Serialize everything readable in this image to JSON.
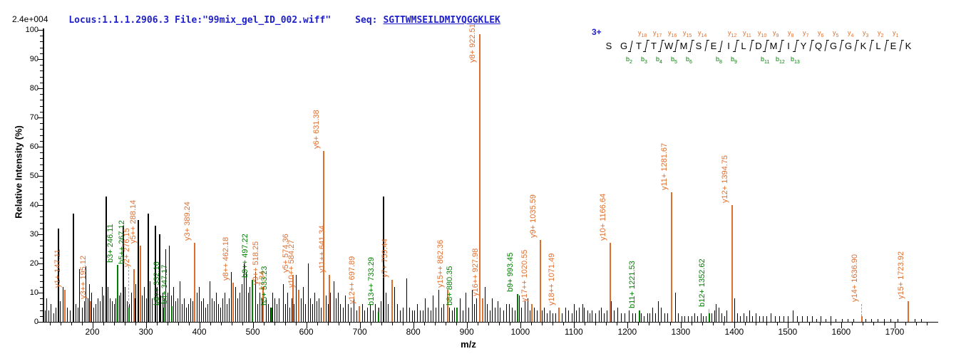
{
  "header": {
    "locus_file": "Locus:1.1.1.2906.3 File:\"99mix_gel_ID_002.wiff\"",
    "seq_label": "Seq:",
    "seq_value": "SGTTWMSEILDMIYQGGKLEK"
  },
  "intensity_scale_label": "2.4e+004",
  "colors": {
    "y_ion": "#e06f2e",
    "b_ion": "#008000",
    "peak_black": "#000000",
    "header_blue": "#2020cc",
    "leader_grey": "#a0a0a0"
  },
  "fragment_map": {
    "charge_label": "3+",
    "residues": [
      "S",
      "G",
      "T",
      "T",
      "W",
      "M",
      "S",
      "E",
      "I",
      "L",
      "D",
      "M",
      "I",
      "Y",
      "Q",
      "G",
      "G",
      "K",
      "L",
      "E",
      "K"
    ],
    "y_ions": {
      "3": "y18",
      "4": "y17",
      "5": "y16",
      "6": "y15",
      "7": "y14",
      "9": "y12",
      "10": "y11",
      "11": "y10",
      "12": "y9",
      "13": "y8",
      "14": "y7",
      "15": "y6",
      "16": "y5",
      "17": "y4",
      "18": "y3",
      "19": "y2",
      "20": "y1"
    },
    "b_ions": {
      "2": "b2",
      "3": "b3",
      "4": "b4",
      "5": "b5",
      "6": "b6",
      "8": "b8",
      "9": "b9",
      "11": "b11",
      "12": "b12",
      "13": "b13"
    }
  },
  "chart_data": {
    "type": "bar",
    "subtype": "ms2-spectrum",
    "xlabel": "m/z",
    "ylabel": "Relative  Intensity (%)",
    "xlim": [
      110,
      1780
    ],
    "ylim": [
      0,
      100
    ],
    "x_major_tick_labels": [
      200,
      300,
      400,
      500,
      600,
      700,
      800,
      900,
      1000,
      1100,
      1200,
      1300,
      1400,
      1500,
      1600,
      1700
    ],
    "x_minor_step": 20,
    "y_tick_labels": [
      0,
      10,
      20,
      30,
      40,
      50,
      60,
      70,
      80,
      90,
      100
    ],
    "y_minor_step": 2,
    "annotated_peaks": [
      {
        "label": "y1+ 147.11",
        "mz": 147.11,
        "intensity": 11,
        "type": "y"
      },
      {
        "label": "y3++ 195.12",
        "mz": 195.12,
        "intensity": 7,
        "type": "y"
      },
      {
        "label": "b3+ 246.11",
        "mz": 246.11,
        "intensity": 19.5,
        "type": "b"
      },
      {
        "label": "b5++ 267.12",
        "mz": 267.12,
        "intensity": 5,
        "label_at": 19,
        "leader": true,
        "type": "b"
      },
      {
        "label": "y2+ 276.15",
        "mz": 276.15,
        "intensity": 18,
        "type": "y"
      },
      {
        "label": "y5++ 288.14",
        "mz": 288.14,
        "intensity": 26,
        "type": "y"
      },
      {
        "label": "b6++ 332.16",
        "mz": 332.16,
        "intensity": 5,
        "type": "b"
      },
      {
        "label": "b4+ 347.17",
        "mz": 347.17,
        "intensity": 5.5,
        "type": "b"
      },
      {
        "label": "y3+ 389.24",
        "mz": 389.24,
        "intensity": 27,
        "type": "y"
      },
      {
        "label": "y8++ 462.18",
        "mz": 462.18,
        "intensity": 13.5,
        "type": "y"
      },
      {
        "label": "b9++ 497.22",
        "mz": 497.22,
        "intensity": 14.5,
        "type": "b"
      },
      {
        "label": "17.34",
        "mz": 517.34,
        "intensity": 10,
        "label_dx": 9,
        "type": "y"
      },
      {
        "label": "y9++ 518.25",
        "mz": 518.25,
        "intensity": 12,
        "type": "y"
      },
      {
        "label": "b5+ 533.23",
        "mz": 533.23,
        "intensity": 5,
        "type": "b"
      },
      {
        "label": "y5+ 574.36",
        "mz": 574.36,
        "intensity": 16,
        "type": "y"
      },
      {
        "label": "y10++ 584.27",
        "mz": 584.27,
        "intensity": 11,
        "type": "y"
      },
      {
        "label": "y6+ 631.38",
        "mz": 631.38,
        "intensity": 58.5,
        "type": "y"
      },
      {
        "label": "y11++ 641.34",
        "mz": 641.34,
        "intensity": 16,
        "type": "y"
      },
      {
        "label": "y12++ 697.89",
        "mz": 697.89,
        "intensity": 5.5,
        "type": "y"
      },
      {
        "label": "b13++ 733.29",
        "mz": 733.29,
        "intensity": 3.5,
        "label_at": 5,
        "leader": true,
        "type": "b"
      },
      {
        "label": "y7+ 759.44",
        "mz": 759.44,
        "intensity": 14.5,
        "type": "y"
      },
      {
        "label": "y15++ 862.36",
        "mz": 862.36,
        "intensity": 11,
        "type": "y"
      },
      {
        "label": "b8+ 880.35",
        "mz": 880.35,
        "intensity": 5,
        "type": "b"
      },
      {
        "label": "y8+ 922.51",
        "mz": 922.51,
        "intensity": 98.5,
        "label_at": 88,
        "type": "y"
      },
      {
        "label": "y16++ 927.98",
        "mz": 927.98,
        "intensity": 8,
        "type": "y"
      },
      {
        "label": "b9+ 993.45",
        "mz": 993.45,
        "intensity": 9.5,
        "type": "b"
      },
      {
        "label": "y17++ 1020.55",
        "mz": 1020.55,
        "intensity": 6,
        "type": "y"
      },
      {
        "label": "y9+ 1035.59",
        "mz": 1035.59,
        "intensity": 28,
        "type": "y"
      },
      {
        "label": "y18++ 1071.49",
        "mz": 1071.49,
        "intensity": 5,
        "type": "y"
      },
      {
        "label": "y10+ 1166.64",
        "mz": 1166.64,
        "intensity": 27,
        "type": "y"
      },
      {
        "label": "b11+ 1221.53",
        "mz": 1221.53,
        "intensity": 4,
        "type": "b"
      },
      {
        "label": "y11+ 1281.67",
        "mz": 1281.67,
        "intensity": 44.5,
        "type": "y"
      },
      {
        "label": "b12+ 1352.62",
        "mz": 1352.62,
        "intensity": 3,
        "label_at": 4.5,
        "leader": true,
        "type": "b"
      },
      {
        "label": "y12+ 1394.75",
        "mz": 1394.75,
        "intensity": 40,
        "type": "y"
      },
      {
        "label": "y14+ 1636.90",
        "mz": 1636.9,
        "intensity": 2,
        "label_at": 6,
        "leader": true,
        "type": "y"
      },
      {
        "label": "y15+ 1723.92",
        "mz": 1723.92,
        "intensity": 7,
        "type": "y"
      }
    ],
    "background_peaks": [
      [
        111,
        4
      ],
      [
        114,
        8
      ],
      [
        118,
        4
      ],
      [
        122,
        6
      ],
      [
        127,
        3
      ],
      [
        131,
        5
      ],
      [
        135,
        32
      ],
      [
        139,
        7
      ],
      [
        144,
        12
      ],
      [
        149,
        6
      ],
      [
        153,
        5
      ],
      [
        158,
        4
      ],
      [
        163,
        37
      ],
      [
        168,
        6
      ],
      [
        172,
        5
      ],
      [
        175,
        18
      ],
      [
        180,
        5
      ],
      [
        184,
        7
      ],
      [
        187,
        19
      ],
      [
        191,
        8
      ],
      [
        194,
        13
      ],
      [
        198,
        10
      ],
      [
        202,
        5
      ],
      [
        206,
        6
      ],
      [
        210,
        8
      ],
      [
        214,
        7
      ],
      [
        218,
        12
      ],
      [
        221,
        9
      ],
      [
        224,
        43
      ],
      [
        228,
        12
      ],
      [
        232,
        8
      ],
      [
        236,
        7
      ],
      [
        240,
        6
      ],
      [
        243,
        8
      ],
      [
        250,
        9
      ],
      [
        253,
        10
      ],
      [
        257,
        33
      ],
      [
        261,
        12
      ],
      [
        265,
        7
      ],
      [
        269,
        6
      ],
      [
        272,
        10
      ],
      [
        279,
        8
      ],
      [
        281,
        13
      ],
      [
        285,
        35
      ],
      [
        289,
        20
      ],
      [
        293,
        9
      ],
      [
        297,
        12
      ],
      [
        300,
        8
      ],
      [
        303,
        37
      ],
      [
        307,
        14
      ],
      [
        311,
        8
      ],
      [
        316,
        33
      ],
      [
        320,
        12
      ],
      [
        324,
        30
      ],
      [
        327,
        9
      ],
      [
        331,
        10
      ],
      [
        334,
        8
      ],
      [
        337,
        25
      ],
      [
        340,
        10
      ],
      [
        343,
        26
      ],
      [
        347,
        9
      ],
      [
        351,
        12
      ],
      [
        355,
        7
      ],
      [
        359,
        8
      ],
      [
        363,
        14
      ],
      [
        367,
        6
      ],
      [
        371,
        8
      ],
      [
        375,
        5
      ],
      [
        379,
        6
      ],
      [
        383,
        8
      ],
      [
        387,
        7
      ],
      [
        391,
        6
      ],
      [
        395,
        10
      ],
      [
        399,
        12
      ],
      [
        403,
        7
      ],
      [
        407,
        8
      ],
      [
        411,
        5
      ],
      [
        415,
        6
      ],
      [
        419,
        14
      ],
      [
        423,
        8
      ],
      [
        427,
        7
      ],
      [
        431,
        10
      ],
      [
        435,
        6
      ],
      [
        439,
        5
      ],
      [
        443,
        8
      ],
      [
        447,
        10
      ],
      [
        451,
        6
      ],
      [
        455,
        8
      ],
      [
        459,
        17
      ],
      [
        463,
        9
      ],
      [
        467,
        12
      ],
      [
        471,
        8
      ],
      [
        475,
        10
      ],
      [
        479,
        13
      ],
      [
        483,
        20
      ],
      [
        487,
        17
      ],
      [
        491,
        10
      ],
      [
        494,
        12
      ],
      [
        499,
        8
      ],
      [
        504,
        17
      ],
      [
        508,
        6
      ],
      [
        512,
        10
      ],
      [
        516,
        8
      ],
      [
        524,
        8
      ],
      [
        528,
        6
      ],
      [
        532,
        5
      ],
      [
        537,
        10
      ],
      [
        541,
        8
      ],
      [
        545,
        6
      ],
      [
        549,
        8
      ],
      [
        556,
        13
      ],
      [
        560,
        6
      ],
      [
        564,
        10
      ],
      [
        568,
        5
      ],
      [
        572,
        8
      ],
      [
        577,
        6
      ],
      [
        581,
        16
      ],
      [
        586,
        8
      ],
      [
        590,
        8
      ],
      [
        594,
        12
      ],
      [
        598,
        6
      ],
      [
        603,
        20
      ],
      [
        607,
        8
      ],
      [
        611,
        6
      ],
      [
        615,
        10
      ],
      [
        619,
        7
      ],
      [
        623,
        8
      ],
      [
        627,
        5
      ],
      [
        636,
        9
      ],
      [
        640,
        6
      ],
      [
        645,
        10
      ],
      [
        651,
        14
      ],
      [
        655,
        8
      ],
      [
        659,
        10
      ],
      [
        663,
        6
      ],
      [
        668,
        5
      ],
      [
        673,
        9
      ],
      [
        678,
        6
      ],
      [
        683,
        5
      ],
      [
        689,
        8
      ],
      [
        694,
        4
      ],
      [
        699,
        5
      ],
      [
        704,
        6
      ],
      [
        709,
        4
      ],
      [
        714,
        5
      ],
      [
        719,
        6
      ],
      [
        724,
        4
      ],
      [
        729,
        6
      ],
      [
        735,
        5
      ],
      [
        739,
        7
      ],
      [
        743.5,
        43
      ],
      [
        748,
        10
      ],
      [
        753,
        6
      ],
      [
        765,
        12
      ],
      [
        770,
        6
      ],
      [
        775,
        4
      ],
      [
        780,
        5
      ],
      [
        787,
        15
      ],
      [
        792,
        5
      ],
      [
        797,
        4
      ],
      [
        802,
        4
      ],
      [
        807,
        6
      ],
      [
        812,
        4
      ],
      [
        817,
        4
      ],
      [
        822,
        8
      ],
      [
        827,
        5
      ],
      [
        832,
        4
      ],
      [
        836,
        9
      ],
      [
        841,
        5
      ],
      [
        847,
        11
      ],
      [
        852,
        5
      ],
      [
        856,
        6
      ],
      [
        867,
        5
      ],
      [
        872,
        4
      ],
      [
        876,
        5
      ],
      [
        887,
        8
      ],
      [
        892,
        4
      ],
      [
        897,
        10
      ],
      [
        903,
        5
      ],
      [
        909,
        11
      ],
      [
        914,
        6
      ],
      [
        918,
        8
      ],
      [
        933,
        12
      ],
      [
        938,
        6
      ],
      [
        943,
        4
      ],
      [
        947,
        8
      ],
      [
        952,
        5
      ],
      [
        957,
        7
      ],
      [
        962,
        5
      ],
      [
        968,
        4
      ],
      [
        973,
        6
      ],
      [
        979,
        6
      ],
      [
        984,
        5
      ],
      [
        989,
        4
      ],
      [
        997,
        9
      ],
      [
        1002,
        5
      ],
      [
        1008,
        7
      ],
      [
        1013,
        8
      ],
      [
        1018,
        4
      ],
      [
        1026,
        5
      ],
      [
        1031,
        4
      ],
      [
        1040,
        4
      ],
      [
        1044,
        5
      ],
      [
        1049,
        3
      ],
      [
        1055,
        4
      ],
      [
        1060,
        3
      ],
      [
        1065,
        3
      ],
      [
        1077,
        3
      ],
      [
        1084,
        5
      ],
      [
        1090,
        4
      ],
      [
        1096,
        3
      ],
      [
        1100,
        6
      ],
      [
        1104,
        4
      ],
      [
        1110,
        5
      ],
      [
        1116,
        6
      ],
      [
        1119,
        5
      ],
      [
        1125,
        4
      ],
      [
        1129,
        3
      ],
      [
        1133,
        4
      ],
      [
        1140,
        3
      ],
      [
        1147,
        4
      ],
      [
        1151,
        5
      ],
      [
        1156,
        3
      ],
      [
        1161,
        4
      ],
      [
        1169,
        7
      ],
      [
        1175,
        4
      ],
      [
        1182,
        5
      ],
      [
        1188,
        3
      ],
      [
        1195,
        3
      ],
      [
        1203,
        4
      ],
      [
        1209,
        3
      ],
      [
        1215,
        3
      ],
      [
        1226,
        3
      ],
      [
        1231,
        2
      ],
      [
        1237,
        3
      ],
      [
        1242,
        3
      ],
      [
        1247,
        5
      ],
      [
        1252,
        3
      ],
      [
        1257,
        7
      ],
      [
        1263,
        5
      ],
      [
        1269,
        3
      ],
      [
        1275,
        3
      ],
      [
        1289,
        10
      ],
      [
        1295,
        3
      ],
      [
        1301,
        2
      ],
      [
        1307,
        2
      ],
      [
        1313,
        2
      ],
      [
        1320,
        2
      ],
      [
        1326,
        3
      ],
      [
        1331,
        2
      ],
      [
        1337,
        3
      ],
      [
        1342,
        2
      ],
      [
        1347,
        2
      ],
      [
        1357,
        3
      ],
      [
        1363,
        4
      ],
      [
        1366,
        6
      ],
      [
        1371,
        5
      ],
      [
        1376,
        3
      ],
      [
        1381,
        2
      ],
      [
        1386,
        4
      ],
      [
        1400,
        8
      ],
      [
        1405,
        3
      ],
      [
        1411,
        2
      ],
      [
        1417,
        3
      ],
      [
        1423,
        2
      ],
      [
        1428,
        4
      ],
      [
        1434,
        2
      ],
      [
        1440,
        3
      ],
      [
        1447,
        2
      ],
      [
        1454,
        2
      ],
      [
        1460,
        2
      ],
      [
        1468,
        3
      ],
      [
        1476,
        2
      ],
      [
        1484,
        2
      ],
      [
        1492,
        2
      ],
      [
        1500,
        2
      ],
      [
        1510,
        4
      ],
      [
        1518,
        2
      ],
      [
        1527,
        2
      ],
      [
        1536,
        2
      ],
      [
        1545,
        2
      ],
      [
        1554,
        1
      ],
      [
        1562,
        2
      ],
      [
        1571,
        1
      ],
      [
        1580,
        2
      ],
      [
        1590,
        1
      ],
      [
        1601,
        1
      ],
      [
        1612,
        1
      ],
      [
        1623,
        1
      ],
      [
        1645,
        1
      ],
      [
        1656,
        1
      ],
      [
        1668,
        1
      ],
      [
        1680,
        1
      ],
      [
        1692,
        1
      ],
      [
        1705,
        1
      ],
      [
        1737,
        1
      ],
      [
        1749,
        1
      ]
    ]
  }
}
